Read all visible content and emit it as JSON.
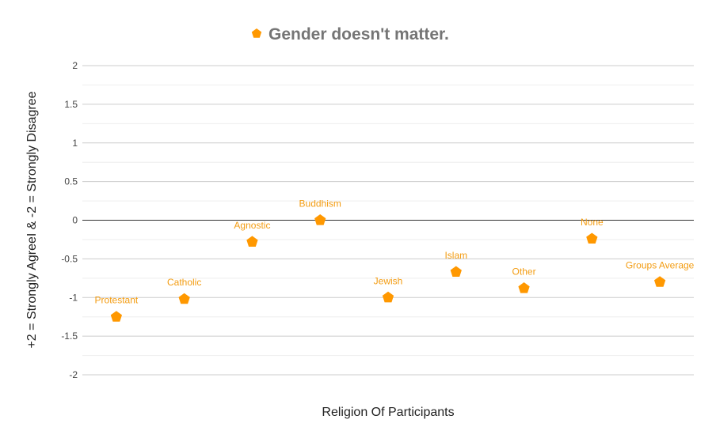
{
  "chart_data": {
    "type": "scatter",
    "title": "",
    "legend": {
      "label": "Gender doesn't matter.",
      "position": "top-center"
    },
    "xlabel": "Religion Of Participants",
    "ylabel": "+2 = Strongly AgreeI & -2 = Strongly Disagree",
    "ylim": [
      -2,
      2
    ],
    "yticks": [
      "2",
      "1.5",
      "1",
      "0.5",
      "0",
      "-0.5",
      "-1",
      "-1.5",
      "-2"
    ],
    "minor_gridlines": true,
    "color": "#ff9800",
    "label_color": "#f39c12",
    "series": [
      {
        "name": "Gender doesn't matter.",
        "points": [
          {
            "label": "Protestant",
            "value": -1.25
          },
          {
            "label": "Catholic",
            "value": -1.02
          },
          {
            "label": "Agnostic",
            "value": -0.28
          },
          {
            "label": "Buddhism",
            "value": 0.0
          },
          {
            "label": "Jewish",
            "value": -1.0
          },
          {
            "label": "Islam",
            "value": -0.67
          },
          {
            "label": "Other",
            "value": -0.88
          },
          {
            "label": "None",
            "value": -0.24
          },
          {
            "label": "Groups Average",
            "value": -0.8
          }
        ]
      }
    ]
  }
}
